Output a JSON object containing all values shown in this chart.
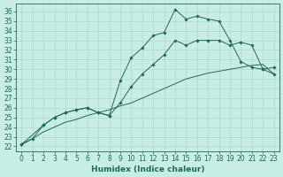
{
  "xlabel": "Humidex (Indice chaleur)",
  "background_color": "#c8ede5",
  "grid_color": "#b0d8d0",
  "line_color": "#1a6b5a",
  "ylim": [
    21.5,
    36.8
  ],
  "xlim": [
    -0.5,
    23.5
  ],
  "yticks": [
    22,
    23,
    24,
    25,
    26,
    27,
    28,
    29,
    30,
    31,
    32,
    33,
    34,
    35,
    36
  ],
  "xticks": [
    0,
    1,
    2,
    3,
    4,
    5,
    6,
    7,
    8,
    9,
    10,
    11,
    12,
    13,
    14,
    15,
    16,
    17,
    18,
    19,
    20,
    21,
    22,
    23
  ],
  "line1_x": [
    0,
    1,
    2,
    3,
    4,
    5,
    6,
    7,
    8,
    9,
    10,
    11,
    12,
    13,
    14,
    15,
    16,
    17,
    18,
    19,
    20,
    21,
    22,
    23
  ],
  "line1_y": [
    22.2,
    22.8,
    24.2,
    25.0,
    25.5,
    25.8,
    26.0,
    25.5,
    25.2,
    28.8,
    31.2,
    32.2,
    33.5,
    33.8,
    36.2,
    35.2,
    35.5,
    35.2,
    35.0,
    33.0,
    30.8,
    30.2,
    30.0,
    30.2
  ],
  "line2_x": [
    0,
    2,
    3,
    4,
    5,
    6,
    7,
    8,
    9,
    10,
    11,
    12,
    13,
    14,
    15,
    16,
    17,
    18,
    19,
    20,
    21,
    22,
    23
  ],
  "line2_y": [
    22.2,
    24.2,
    25.0,
    25.5,
    25.8,
    26.0,
    25.5,
    25.2,
    26.5,
    28.2,
    29.5,
    30.5,
    31.5,
    33.0,
    32.5,
    33.0,
    33.0,
    33.0,
    32.5,
    32.8,
    32.5,
    30.0,
    29.5
  ],
  "line3_x": [
    0,
    1,
    2,
    3,
    4,
    5,
    6,
    7,
    8,
    9,
    10,
    11,
    12,
    13,
    14,
    15,
    16,
    17,
    18,
    19,
    20,
    21,
    22,
    23
  ],
  "line3_y": [
    22.2,
    22.8,
    23.5,
    24.0,
    24.5,
    24.8,
    25.2,
    25.5,
    25.8,
    26.2,
    26.5,
    27.0,
    27.5,
    28.0,
    28.5,
    29.0,
    29.3,
    29.6,
    29.8,
    30.0,
    30.2,
    30.4,
    30.5,
    29.5
  ],
  "fontsize_ticks": 5.5,
  "fontsize_label": 6.5,
  "markersize": 1.8
}
